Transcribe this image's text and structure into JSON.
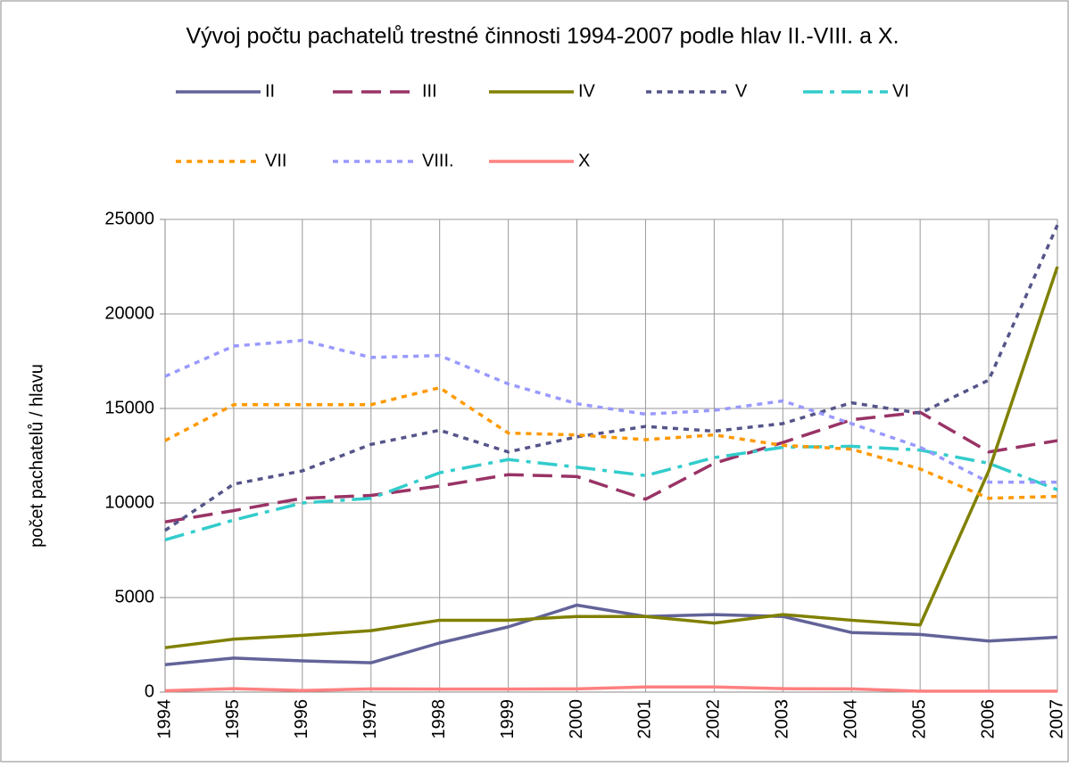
{
  "chart_data": {
    "type": "line",
    "title": "Vývoj počtu pachatelů trestné činnosti 1994-2007 podle hlav II.-VIII. a X.",
    "y_label": "počet pachatelů  / hlavu",
    "categories": [
      "1994",
      "1995",
      "1996",
      "1997",
      "1998",
      "1999",
      "2000",
      "2001",
      "2002",
      "2003",
      "2004",
      "2005",
      "2006",
      "2007"
    ],
    "ylim": [
      0,
      25000
    ],
    "yticks": [
      0,
      5000,
      10000,
      15000,
      20000,
      25000
    ],
    "grid": true,
    "legend": "top",
    "series": [
      {
        "name": "II",
        "color": "#636399",
        "line_style": "solid",
        "values": [
          1450,
          1800,
          1650,
          1550,
          2600,
          3450,
          4600,
          4000,
          4100,
          4000,
          3150,
          3050,
          2700,
          2900
        ]
      },
      {
        "name": "III",
        "color": "#993366",
        "line_style": "dashed",
        "values": [
          9000,
          9600,
          10250,
          10400,
          10900,
          11500,
          11400,
          10200,
          12100,
          13200,
          14400,
          14800,
          12700,
          13300
        ]
      },
      {
        "name": "IV",
        "color": "#808000",
        "line_style": "solid",
        "values": [
          2350,
          2800,
          3000,
          3250,
          3800,
          3800,
          4000,
          4000,
          3650,
          4100,
          3800,
          3550,
          11700,
          22500
        ]
      },
      {
        "name": "V",
        "color": "#55558a",
        "line_style": "dotted",
        "values": [
          8550,
          11000,
          11700,
          13100,
          13850,
          12700,
          13500,
          14050,
          13800,
          14200,
          15300,
          14750,
          16500,
          24700
        ]
      },
      {
        "name": "VI",
        "color": "#33cccc",
        "line_style": "dashdot",
        "values": [
          8050,
          9100,
          10000,
          10250,
          11600,
          12300,
          11900,
          11450,
          12400,
          12950,
          13000,
          12800,
          12100,
          10700
        ]
      },
      {
        "name": "VII",
        "color": "#ff9900",
        "line_style": "dotted",
        "values": [
          13300,
          15200,
          15200,
          15200,
          16100,
          13700,
          13600,
          13350,
          13600,
          13050,
          12850,
          11800,
          10250,
          10350
        ]
      },
      {
        "name": "VIII.",
        "color": "#9999ff",
        "line_style": "dotted",
        "values": [
          16700,
          18300,
          18600,
          17700,
          17800,
          16300,
          15250,
          14700,
          14900,
          15400,
          14200,
          12950,
          11100,
          11100
        ]
      },
      {
        "name": "X",
        "color": "#ff8080",
        "line_style": "solid",
        "values": [
          70,
          180,
          80,
          170,
          160,
          160,
          170,
          270,
          270,
          180,
          170,
          50,
          50,
          50
        ]
      }
    ]
  }
}
